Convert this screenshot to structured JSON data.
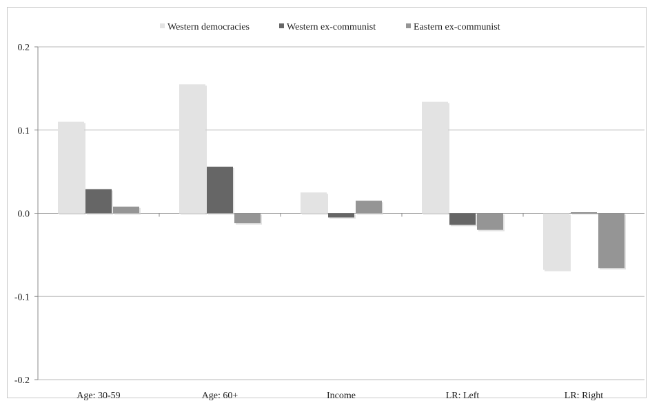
{
  "chart_data": {
    "type": "bar",
    "title": "",
    "xlabel": "",
    "ylabel": "",
    "categories": [
      "Age: 30-59",
      "Age: 60+",
      "Income",
      "LR: Left",
      "LR: Right"
    ],
    "series": [
      {
        "name": "Western democracies",
        "color": "#e3e3e3",
        "values": [
          0.11,
          0.155,
          0.025,
          0.134,
          -0.068
        ]
      },
      {
        "name": "Western ex-communist",
        "color": "#666666",
        "values": [
          0.029,
          0.056,
          -0.005,
          -0.014,
          0.001
        ]
      },
      {
        "name": "Eastern ex-communist",
        "color": "#959595",
        "values": [
          0.008,
          -0.012,
          0.015,
          -0.02,
          -0.066
        ]
      }
    ],
    "ylim": [
      -0.2,
      0.2
    ],
    "yticks": [
      0.2,
      0.1,
      0.0,
      -0.1,
      -0.2
    ],
    "ytick_labels": [
      "0.2",
      "0.1",
      "0.0",
      "-0.1",
      "-0.2"
    ],
    "grid": true,
    "legend": "top-center"
  }
}
